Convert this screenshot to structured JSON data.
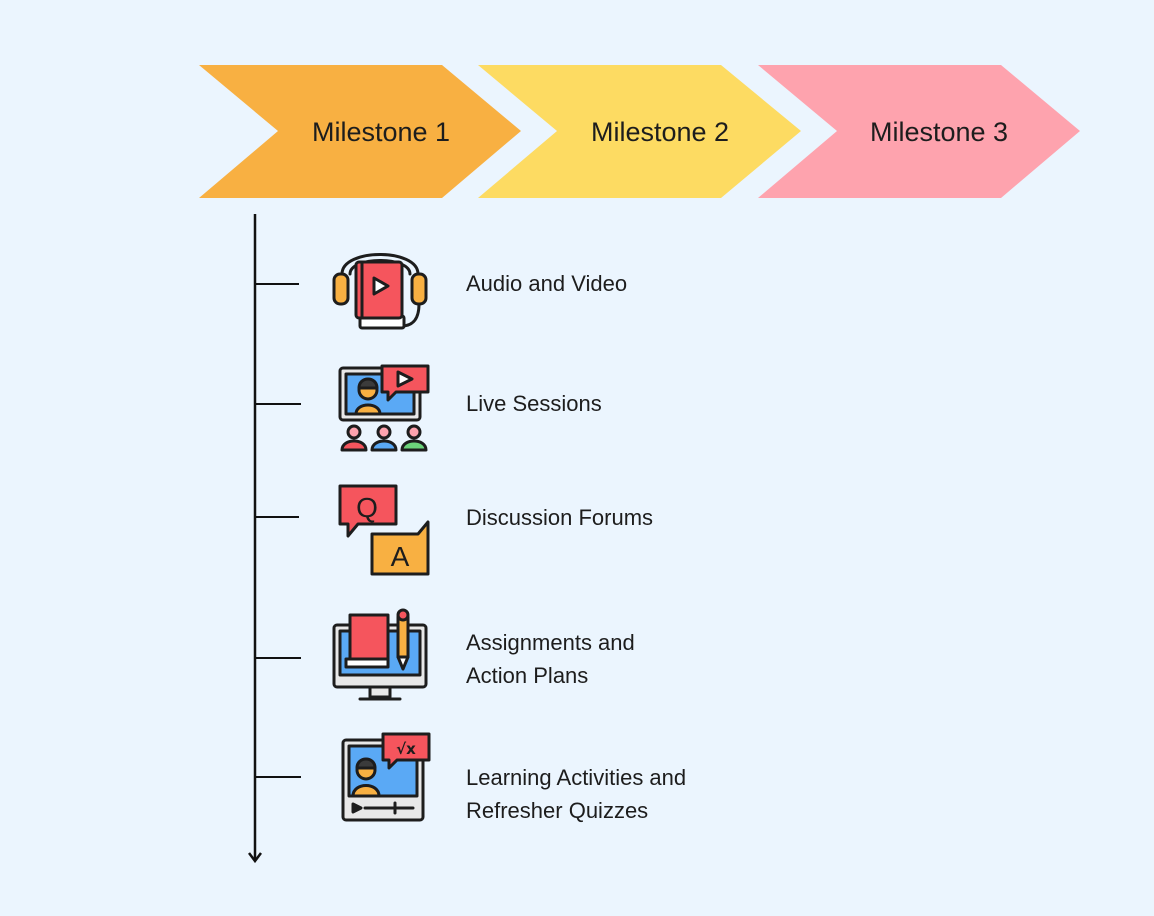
{
  "colors": {
    "background": "#ebf5fe",
    "milestone_1": "#f8b042",
    "milestone_2": "#fddb62",
    "milestone_3": "#fea3ae",
    "timeline": "#111111"
  },
  "milestones": [
    {
      "label": "Milestone 1"
    },
    {
      "label": "Milestone 2"
    },
    {
      "label": "Milestone 3"
    }
  ],
  "items": [
    {
      "icon": "headphones-video-book-icon",
      "lines": [
        "Audio and Video"
      ]
    },
    {
      "icon": "live-session-monitor-icon",
      "lines": [
        "Live Sessions"
      ]
    },
    {
      "icon": "question-answer-bubbles-icon",
      "lines": [
        "Discussion Forums"
      ]
    },
    {
      "icon": "monitor-book-pencil-icon",
      "lines": [
        "Assignments and",
        "Action Plans"
      ]
    },
    {
      "icon": "video-lesson-math-icon",
      "lines": [
        "Learning Activities and",
        "Refresher Quizzes"
      ]
    }
  ]
}
